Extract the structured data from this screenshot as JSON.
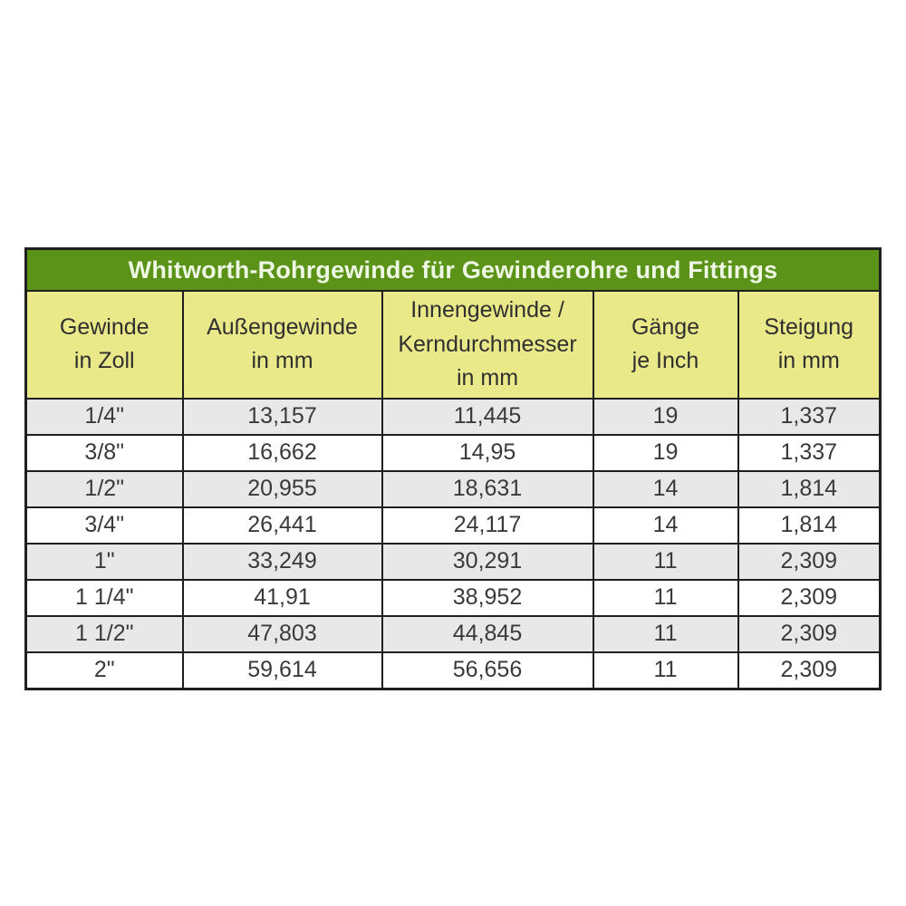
{
  "table": {
    "title": "Whitworth-Rohrgewinde für Gewinderohre und Fittings",
    "columns": [
      [
        "Gewinde",
        "in Zoll"
      ],
      [
        "Außengewinde",
        "in mm"
      ],
      [
        "Innengewinde /",
        "Kerndurchmesser",
        "in mm"
      ],
      [
        "Gänge",
        "je Inch"
      ],
      [
        "Steigung",
        "in mm"
      ]
    ],
    "rows": [
      [
        "1/4\"",
        "13,157",
        "11,445",
        "19",
        "1,337"
      ],
      [
        "3/8\"",
        "16,662",
        "14,95",
        "19",
        "1,337"
      ],
      [
        "1/2\"",
        "20,955",
        "18,631",
        "14",
        "1,814"
      ],
      [
        "3/4\"",
        "26,441",
        "24,117",
        "14",
        "1,814"
      ],
      [
        "1\"",
        "33,249",
        "30,291",
        "11",
        "2,309"
      ],
      [
        "1 1/4\"",
        "41,91",
        "38,952",
        "11",
        "2,309"
      ],
      [
        "1 1/2\"",
        "47,803",
        "44,845",
        "11",
        "2,309"
      ],
      [
        "2\"",
        "59,614",
        "56,656",
        "11",
        "2,309"
      ]
    ]
  },
  "colors": {
    "title_background": "#5a9317",
    "title_text": "#eef7e3",
    "header_background": "#eae98a",
    "stripe_row_background": "#e8e8e8",
    "plain_row_background": "#ffffff",
    "border": "#1f1f1f",
    "body_text": "#3a3a3a"
  },
  "chart_data": {
    "type": "table",
    "title": "Whitworth-Rohrgewinde für Gewinderohre und Fittings",
    "columns": [
      "Gewinde in Zoll",
      "Außengewinde in mm",
      "Innengewinde / Kerndurchmesser in mm",
      "Gänge je Inch",
      "Steigung in mm"
    ],
    "rows": [
      [
        "1/4\"",
        "13,157",
        "11,445",
        "19",
        "1,337"
      ],
      [
        "3/8\"",
        "16,662",
        "14,95",
        "19",
        "1,337"
      ],
      [
        "1/2\"",
        "20,955",
        "18,631",
        "14",
        "1,814"
      ],
      [
        "3/4\"",
        "26,441",
        "24,117",
        "14",
        "1,814"
      ],
      [
        "1\"",
        "33,249",
        "30,291",
        "11",
        "2,309"
      ],
      [
        "1 1/4\"",
        "41,91",
        "38,952",
        "11",
        "2,309"
      ],
      [
        "1 1/2\"",
        "47,803",
        "44,845",
        "11",
        "2,309"
      ],
      [
        "2\"",
        "59,614",
        "56,656",
        "11",
        "2,309"
      ]
    ]
  }
}
